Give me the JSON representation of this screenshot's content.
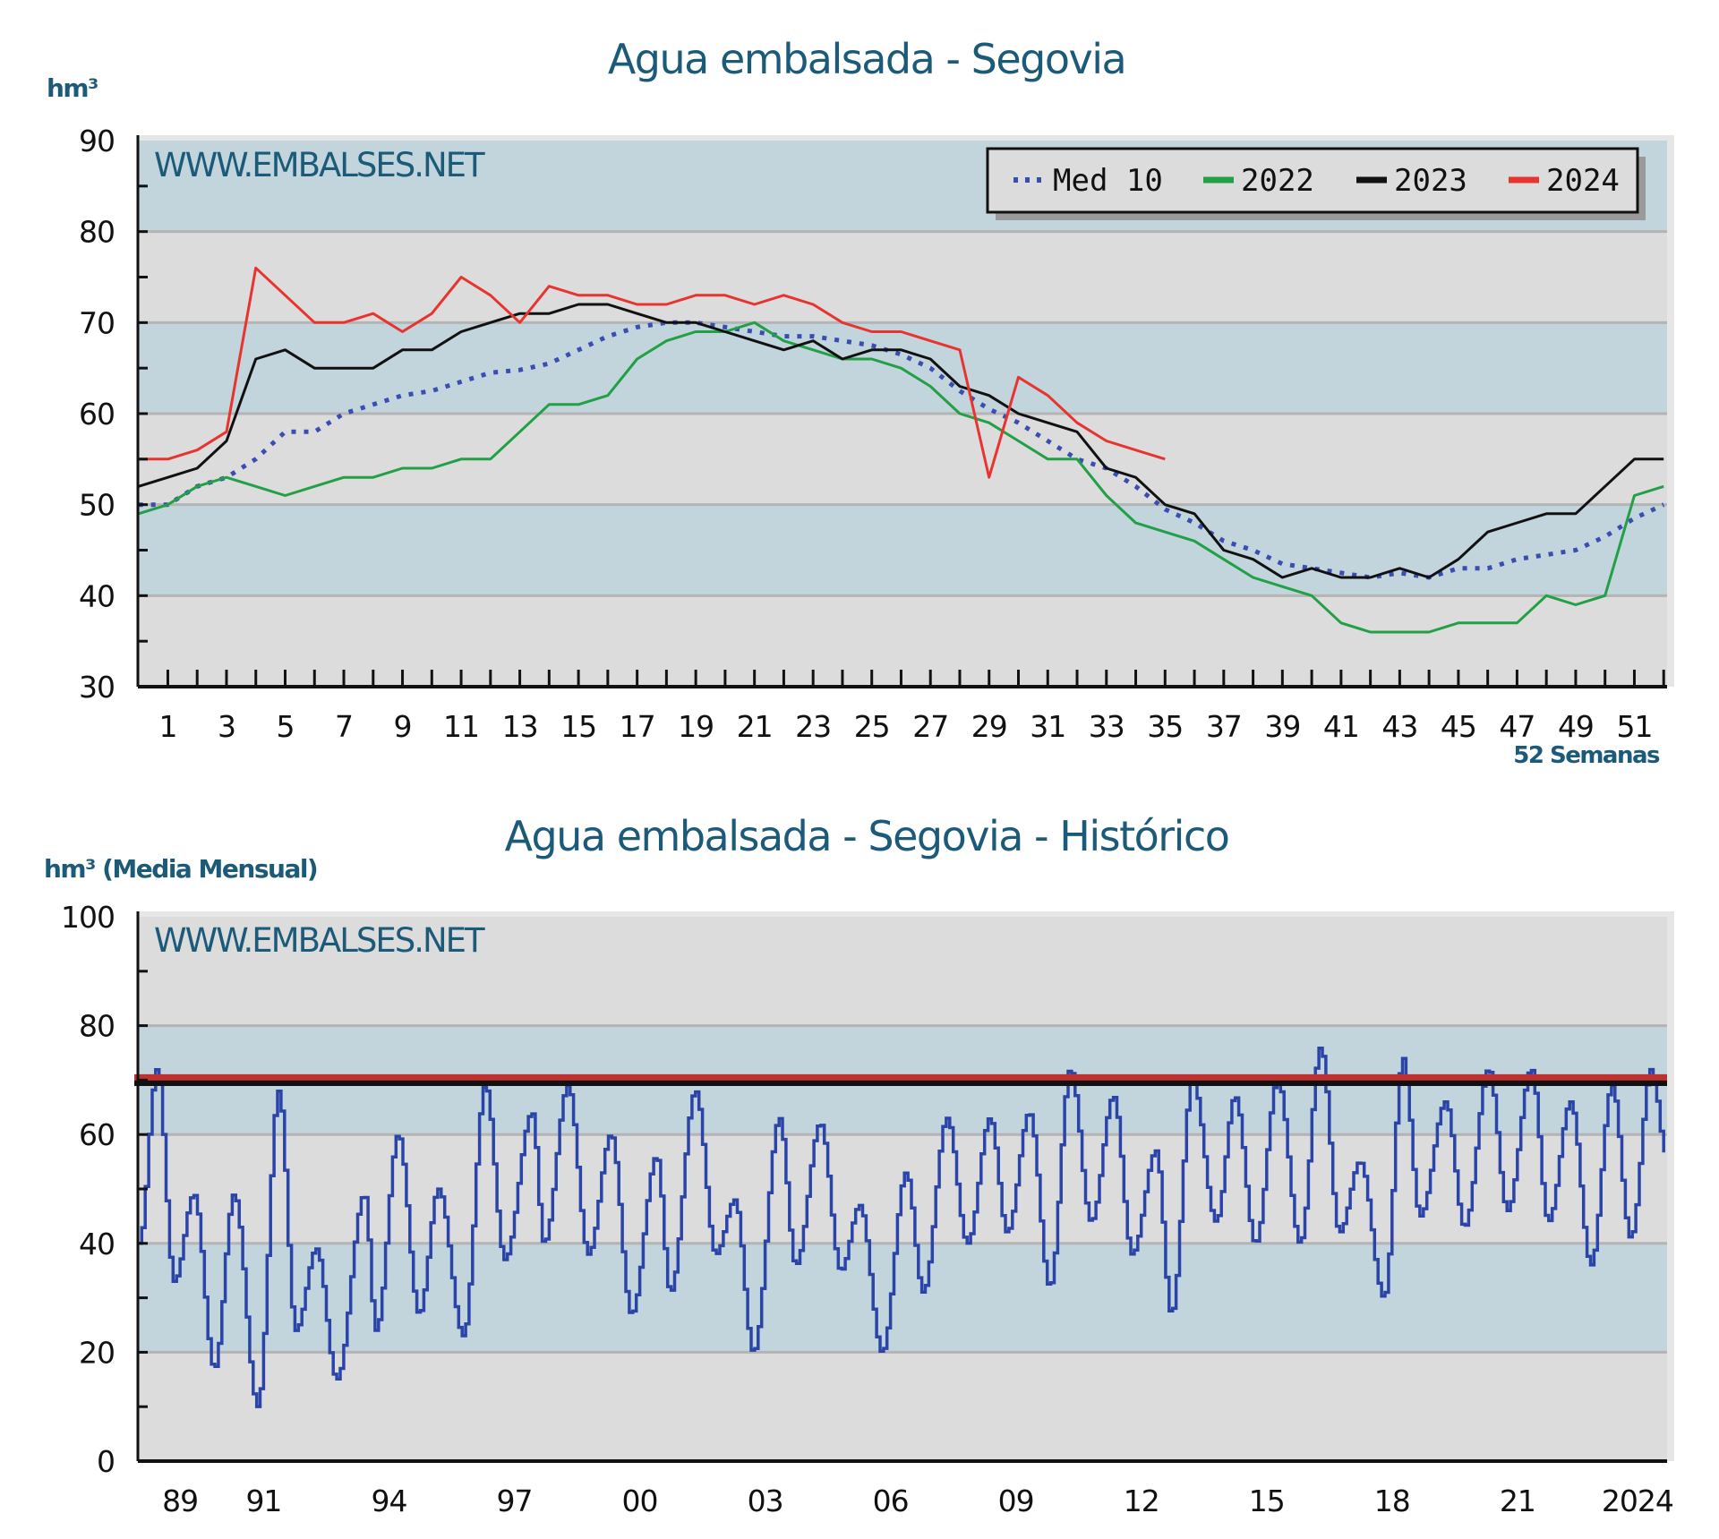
{
  "chart_data": [
    {
      "type": "line",
      "title": "Agua embalsada - Segovia",
      "ylabel": "hm³",
      "xlabel": "52 Semanas",
      "watermark": "WWW.EMBALSES.NET",
      "ylim": [
        30,
        90
      ],
      "yticks": [
        30,
        40,
        50,
        60,
        70,
        80,
        90
      ],
      "xlim": [
        0,
        52
      ],
      "xticks": [
        1,
        3,
        5,
        7,
        9,
        11,
        13,
        15,
        17,
        19,
        21,
        23,
        25,
        27,
        29,
        31,
        33,
        35,
        37,
        39,
        41,
        43,
        45,
        47,
        49,
        51
      ],
      "grid": true,
      "legend_position": "top-right",
      "background_bands": {
        "blue": "#c2d4dc",
        "gray": "#dcdcdc"
      },
      "series": [
        {
          "name": "Med 10",
          "color": "#3a4db3",
          "style": "dotted",
          "values": [
            50,
            50,
            52,
            53,
            55,
            58,
            58,
            60,
            61,
            62,
            62.5,
            63.5,
            64.5,
            64.8,
            65.5,
            67,
            68.5,
            69.5,
            70,
            70,
            69.5,
            69,
            68.5,
            68.5,
            68,
            67.5,
            66.5,
            65,
            62.5,
            60.5,
            59,
            57,
            55,
            54,
            52,
            49.5,
            48,
            46,
            45,
            43.5,
            43,
            42.5,
            42,
            42.5,
            42,
            43,
            43,
            44,
            44.5,
            45,
            46.5,
            48.5,
            50
          ]
        },
        {
          "name": "2022",
          "color": "#22a045",
          "style": "solid",
          "values": [
            49,
            50,
            52,
            53,
            52,
            51,
            52,
            53,
            53,
            54,
            54,
            55,
            55,
            58,
            61,
            61,
            62,
            66,
            68,
            69,
            69,
            70,
            68,
            67,
            66,
            66,
            65,
            63,
            60,
            59,
            57,
            55,
            55,
            51,
            48,
            47,
            46,
            44,
            42,
            41,
            40,
            37,
            36,
            36,
            36,
            37,
            37,
            37,
            40,
            39,
            40,
            51,
            52
          ]
        },
        {
          "name": "2023",
          "color": "#111111",
          "style": "solid",
          "values": [
            52,
            53,
            54,
            57,
            66,
            67,
            65,
            65,
            65,
            67,
            67,
            69,
            70,
            71,
            71,
            72,
            72,
            71,
            70,
            70,
            69,
            68,
            67,
            68,
            66,
            67,
            67,
            66,
            63,
            62,
            60,
            59,
            58,
            54,
            53,
            50,
            49,
            45,
            44,
            42,
            43,
            42,
            42,
            43,
            42,
            44,
            47,
            48,
            49,
            49,
            52,
            55,
            55
          ]
        },
        {
          "name": "2024",
          "color": "#e8342f",
          "style": "solid",
          "values": [
            55,
            55,
            56,
            58,
            76,
            73,
            70,
            70,
            71,
            69,
            71,
            75,
            73,
            70,
            74,
            73,
            73,
            72,
            72,
            73,
            73,
            72,
            73,
            72,
            70,
            69,
            69,
            68,
            67,
            53,
            64,
            62,
            59,
            57,
            56,
            55
          ]
        }
      ]
    },
    {
      "type": "line",
      "title": "Agua embalsada - Segovia - Histórico",
      "ylabel": "hm³ (Media Mensual)",
      "watermark": "WWW.EMBALSES.NET",
      "ylim": [
        0,
        100
      ],
      "yticks": [
        0,
        20,
        40,
        60,
        80,
        100
      ],
      "xlim": [
        1988,
        2024.6
      ],
      "xticks": [
        {
          "year": 1989,
          "label": "89"
        },
        {
          "year": 1991,
          "label": "91"
        },
        {
          "year": 1994,
          "label": "94"
        },
        {
          "year": 1997,
          "label": "97"
        },
        {
          "year": 2000,
          "label": "00"
        },
        {
          "year": 2003,
          "label": "03"
        },
        {
          "year": 2006,
          "label": "06"
        },
        {
          "year": 2009,
          "label": "09"
        },
        {
          "year": 2012,
          "label": "12"
        },
        {
          "year": 2015,
          "label": "15"
        },
        {
          "year": 2018,
          "label": "18"
        },
        {
          "year": 2021,
          "label": "21"
        },
        {
          "year": 2024,
          "label": "2024"
        }
      ],
      "grid": true,
      "background_bands": {
        "blue": "#c2d4dc",
        "gray": "#dcdcdc"
      },
      "reference_lines": [
        {
          "value": 69.5,
          "color": "#111111"
        },
        {
          "value": 70.5,
          "color": "#c0302e"
        }
      ],
      "series": [
        {
          "color": "#2a44a8",
          "points": [
            [
              1988.0,
              40
            ],
            [
              1988.43,
              72
            ],
            [
              1988.84,
              33
            ],
            [
              1989.31,
              49
            ],
            [
              1989.8,
              17
            ],
            [
              1990.27,
              49
            ],
            [
              1990.84,
              10
            ],
            [
              1991.34,
              68
            ],
            [
              1991.75,
              24
            ],
            [
              1992.24,
              39
            ],
            [
              1992.73,
              15
            ],
            [
              1993.39,
              49
            ],
            [
              1993.67,
              24
            ],
            [
              1994.2,
              60
            ],
            [
              1994.7,
              27
            ],
            [
              1995.16,
              50
            ],
            [
              1995.76,
              23
            ],
            [
              1996.28,
              69
            ],
            [
              1996.75,
              37
            ],
            [
              1997.4,
              64
            ],
            [
              1997.69,
              40
            ],
            [
              1998.26,
              69
            ],
            [
              1998.75,
              38
            ],
            [
              1999.29,
              60
            ],
            [
              1999.78,
              27
            ],
            [
              2000.38,
              56
            ],
            [
              2000.71,
              31
            ],
            [
              2001.31,
              68
            ],
            [
              2001.8,
              38
            ],
            [
              2002.25,
              48
            ],
            [
              2002.7,
              20
            ],
            [
              2003.32,
              63
            ],
            [
              2003.71,
              36
            ],
            [
              2004.3,
              62
            ],
            [
              2004.79,
              35
            ],
            [
              2005.24,
              47
            ],
            [
              2005.78,
              20
            ],
            [
              2006.35,
              53
            ],
            [
              2006.76,
              31
            ],
            [
              2007.33,
              63
            ],
            [
              2007.82,
              40
            ],
            [
              2008.36,
              63
            ],
            [
              2008.77,
              42
            ],
            [
              2009.3,
              64
            ],
            [
              2009.79,
              32
            ],
            [
              2010.28,
              72
            ],
            [
              2010.78,
              44
            ],
            [
              2011.31,
              67
            ],
            [
              2011.76,
              38
            ],
            [
              2012.33,
              57
            ],
            [
              2012.7,
              27
            ],
            [
              2013.2,
              70
            ],
            [
              2013.77,
              44
            ],
            [
              2014.22,
              67
            ],
            [
              2014.71,
              40
            ],
            [
              2015.24,
              70
            ],
            [
              2015.78,
              40
            ],
            [
              2016.27,
              76
            ],
            [
              2016.72,
              42
            ],
            [
              2017.21,
              55
            ],
            [
              2017.79,
              30
            ],
            [
              2018.24,
              74
            ],
            [
              2018.65,
              45
            ],
            [
              2019.26,
              66
            ],
            [
              2019.71,
              43
            ],
            [
              2020.29,
              72
            ],
            [
              2020.74,
              46
            ],
            [
              2021.31,
              72
            ],
            [
              2021.72,
              44
            ],
            [
              2022.25,
              66
            ],
            [
              2022.74,
              36
            ],
            [
              2023.24,
              69
            ],
            [
              2023.69,
              41
            ],
            [
              2024.18,
              72
            ],
            [
              2024.55,
              56
            ]
          ]
        }
      ]
    }
  ]
}
